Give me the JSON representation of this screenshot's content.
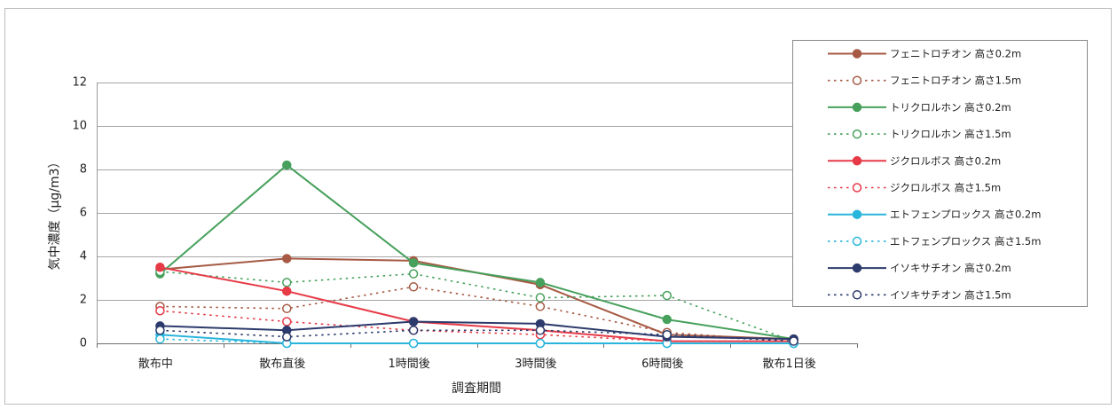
{
  "chart_data": {
    "type": "line",
    "categories": [
      "散布中",
      "散布直後",
      "1時間後",
      "3時間後",
      "6時間後",
      "散布1日後"
    ],
    "xlabel": "調査期間",
    "ylabel": "気中濃度（μg/m3）",
    "ylim": [
      0,
      12
    ],
    "yticks": [
      0,
      2,
      4,
      6,
      8,
      10,
      12
    ],
    "grid": true,
    "legend_position": "right",
    "series": [
      {
        "name": "フェニトロチオン 高さ0.2m",
        "color": "#a65a44",
        "line": "solid",
        "marker": "filled",
        "values": [
          3.4,
          3.9,
          3.8,
          2.7,
          0.4,
          0.2
        ]
      },
      {
        "name": "フェニトロチオン 高さ1.5m",
        "color": "#a65a44",
        "line": "dotted",
        "marker": "hollow",
        "values": [
          1.7,
          1.6,
          2.6,
          1.7,
          0.5,
          0.1
        ]
      },
      {
        "name": "トリクロルホン 高さ0.2m",
        "color": "#47a05c",
        "line": "solid",
        "marker": "filled",
        "values": [
          3.2,
          8.2,
          3.7,
          2.8,
          1.1,
          0.2
        ]
      },
      {
        "name": "トリクロルホン 高さ1.5m",
        "color": "#47a05c",
        "line": "dotted",
        "marker": "hollow",
        "values": [
          3.3,
          2.8,
          3.2,
          2.1,
          2.2,
          0.1
        ]
      },
      {
        "name": "ジクロルボス 高さ0.2m",
        "color": "#e63a47",
        "line": "solid",
        "marker": "filled",
        "values": [
          3.5,
          2.4,
          1.0,
          0.6,
          0.1,
          0.1
        ]
      },
      {
        "name": "ジクロルボス 高さ1.5m",
        "color": "#e63a47",
        "line": "dotted",
        "marker": "hollow",
        "values": [
          1.5,
          1.0,
          0.6,
          0.4,
          0.1,
          0.1
        ]
      },
      {
        "name": "エトフェンプロックス 高さ0.2m",
        "color": "#29b5dc",
        "line": "solid",
        "marker": "filled",
        "values": [
          0.4,
          0.0,
          0.0,
          0.0,
          0.0,
          0.0
        ]
      },
      {
        "name": "エトフェンプロックス 高さ1.5m",
        "color": "#29b5dc",
        "line": "dotted",
        "marker": "hollow",
        "values": [
          0.2,
          0.0,
          0.0,
          0.0,
          0.0,
          0.0
        ]
      },
      {
        "name": "イソキサチオン 高さ0.2m",
        "color": "#2c3b6c",
        "line": "solid",
        "marker": "filled",
        "values": [
          0.8,
          0.6,
          1.0,
          0.9,
          0.3,
          0.2
        ]
      },
      {
        "name": "イソキサチオン 高さ1.5m",
        "color": "#2c3b6c",
        "line": "dotted",
        "marker": "hollow",
        "values": [
          0.6,
          0.3,
          0.6,
          0.6,
          0.4,
          0.1
        ]
      }
    ]
  }
}
